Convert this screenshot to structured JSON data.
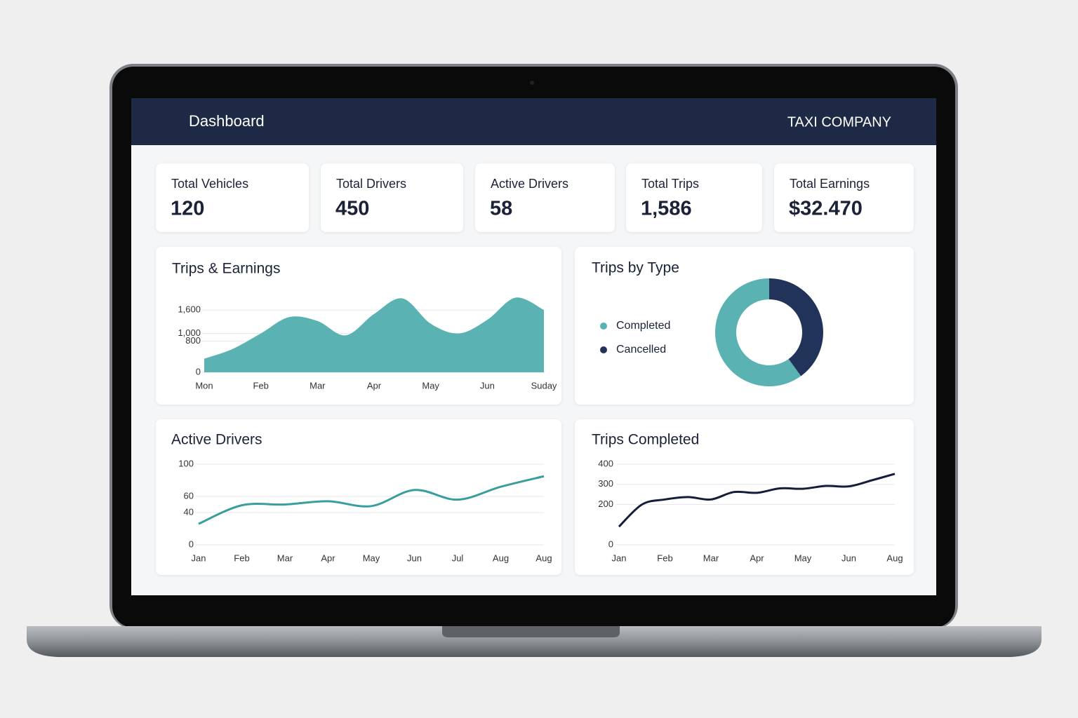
{
  "header": {
    "title": "Dashboard",
    "company": "TAXI COMPANY"
  },
  "cards": [
    {
      "label": "Total Vehicles",
      "value": "120"
    },
    {
      "label": "Total Drivers",
      "value": "450"
    },
    {
      "label": "Active Drivers",
      "value": "58"
    },
    {
      "label": "Total Trips",
      "value": "1,586"
    },
    {
      "label": "Total Earnings",
      "value": "$32.470"
    }
  ],
  "chart_data": [
    {
      "type": "area",
      "title": "Trips & Earnings",
      "categories": [
        "Mon",
        null,
        "Feb",
        null,
        "Mar",
        null,
        "Apr",
        null,
        "May",
        null,
        "Jun",
        null,
        "Suday"
      ],
      "values": [
        350,
        600,
        1000,
        1420,
        1320,
        950,
        1500,
        1900,
        1250,
        1000,
        1350,
        1920,
        1600
      ],
      "color": "#5ab2b2",
      "ylim": [
        0,
        2000
      ],
      "yticks": [
        {
          "value": 1000,
          "label": "1,000"
        },
        {
          "value": 1600,
          "label": "1,600"
        },
        800,
        0
      ],
      "grid": true
    },
    {
      "type": "pie",
      "title": "Trips by Type",
      "categories": [
        "Completed",
        "Cancelled"
      ],
      "values": [
        60,
        40
      ],
      "colors": [
        "#5ab2b2",
        "#22335a"
      ],
      "legend": "left"
    },
    {
      "type": "line",
      "title": "Active Drivers",
      "categories": [
        "Jan",
        "Feb",
        "Mar",
        "Apr",
        "May",
        "Jun",
        "Jul",
        "Aug",
        "Aug"
      ],
      "values": [
        26,
        49,
        50,
        54,
        48,
        68,
        56,
        72,
        85
      ],
      "color": "#3a9e9c",
      "ylim": [
        0,
        100
      ],
      "yticks": [
        100,
        60,
        40,
        0
      ],
      "grid": true
    },
    {
      "type": "line",
      "title": "Trips Completed",
      "categories": [
        "Jan",
        null,
        "Feb",
        null,
        "Mar",
        null,
        "Apr",
        null,
        "May",
        null,
        "Jun",
        null,
        "Aug"
      ],
      "values": [
        90,
        200,
        225,
        237,
        225,
        262,
        258,
        280,
        278,
        292,
        290,
        320,
        352
      ],
      "color": "#141d3a",
      "ylim": [
        0,
        400
      ],
      "yticks": [
        400,
        300,
        200,
        0
      ],
      "grid": true
    }
  ]
}
